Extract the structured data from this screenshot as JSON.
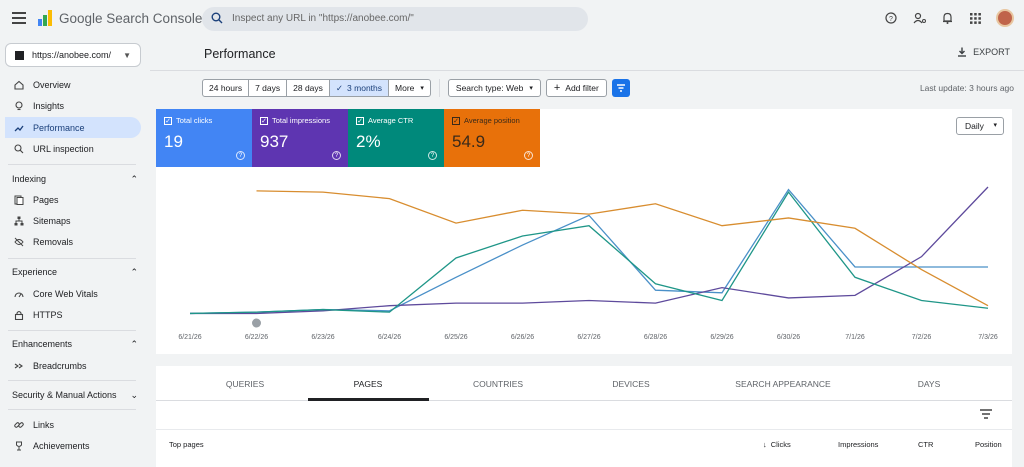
{
  "app": {
    "title": "Google Search Console"
  },
  "search": {
    "placeholder": "Inspect any URL in \"https://anobee.com/\""
  },
  "property": {
    "name": "https://anobee.com/"
  },
  "sidebar": {
    "items_top": [
      {
        "label": "Overview",
        "icon": "home-icon"
      },
      {
        "label": "Insights",
        "icon": "insights-icon"
      },
      {
        "label": "Performance",
        "icon": "trending-icon",
        "active": true
      },
      {
        "label": "URL inspection",
        "icon": "search-icon"
      }
    ],
    "indexing": {
      "heading": "Indexing",
      "items": [
        "Pages",
        "Sitemaps",
        "Removals"
      ]
    },
    "experience": {
      "heading": "Experience",
      "items": [
        "Core Web Vitals",
        "HTTPS"
      ]
    },
    "enhancements": {
      "heading": "Enhancements",
      "items": [
        "Breadcrumbs"
      ]
    },
    "security": {
      "heading": "Security & Manual Actions"
    },
    "bottom": [
      "Links",
      "Achievements"
    ]
  },
  "page": {
    "title": "Performance",
    "export_label": "EXPORT",
    "last_update": "Last update: 3 hours ago"
  },
  "date_range": {
    "options": [
      "24 hours",
      "7 days",
      "28 days",
      "3 months",
      "More"
    ],
    "selected": "3 months"
  },
  "filters": {
    "search_type": "Search type: Web",
    "add_filter": "Add filter"
  },
  "metrics": [
    {
      "label": "Total clicks",
      "value": "19",
      "color": "#4285f4"
    },
    {
      "label": "Total impressions",
      "value": "937",
      "color": "#5e35b1"
    },
    {
      "label": "Average CTR",
      "value": "2%",
      "color": "#00897b"
    },
    {
      "label": "Average position",
      "value": "54.9",
      "color": "#e8710a"
    }
  ],
  "granularity": "Daily",
  "chart_data": {
    "type": "line",
    "x": [
      "6/21/26",
      "6/22/26",
      "6/23/26",
      "6/24/26",
      "6/25/26",
      "6/26/26",
      "6/27/26",
      "6/28/26",
      "6/29/26",
      "6/30/26",
      "7/1/26",
      "7/2/26",
      "7/3/26"
    ],
    "series": [
      {
        "name": "Total clicks",
        "color": "#4a90c8",
        "values": [
          0.02,
          0.03,
          0.05,
          0.04,
          0.3,
          0.55,
          0.78,
          0.2,
          0.18,
          0.98,
          0.38,
          0.38,
          0.38
        ]
      },
      {
        "name": "Total impressions",
        "color": "#5e4a9c",
        "values": [
          0.02,
          0.02,
          0.04,
          0.08,
          0.1,
          0.1,
          0.12,
          0.1,
          0.22,
          0.14,
          0.16,
          0.46,
          1.0
        ]
      },
      {
        "name": "Average CTR",
        "color": "#1f9688",
        "values": [
          0.02,
          0.03,
          0.05,
          0.03,
          0.45,
          0.62,
          0.7,
          0.25,
          0.12,
          0.96,
          0.3,
          0.12,
          0.06
        ]
      },
      {
        "name": "Average position",
        "color": "#d88d2f",
        "values": [
          null,
          0.97,
          0.96,
          0.91,
          0.72,
          0.82,
          0.79,
          0.87,
          0.7,
          0.76,
          0.68,
          0.36,
          0.08
        ]
      }
    ],
    "annotation_marker": "6/22/26"
  },
  "table": {
    "tabs": [
      "QUERIES",
      "PAGES",
      "COUNTRIES",
      "DEVICES",
      "SEARCH APPEARANCE",
      "DAYS"
    ],
    "selected_tab": "PAGES",
    "columns": [
      "Top pages",
      "Clicks",
      "Impressions",
      "CTR",
      "Position"
    ]
  }
}
